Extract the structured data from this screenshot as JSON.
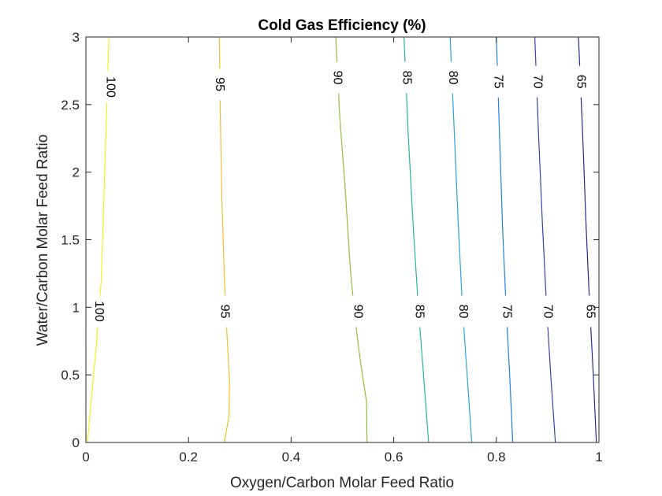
{
  "chart_data": {
    "type": "contour",
    "title": "Cold Gas Efficiency (%)",
    "xlabel": "Oxygen/Carbon Molar Feed Ratio",
    "ylabel": "Water/Carbon Molar Feed Ratio",
    "xlim": [
      0,
      1
    ],
    "ylim": [
      0,
      3
    ],
    "xticks": [
      "0",
      "0.2",
      "0.4",
      "0.6",
      "0.8",
      "1"
    ],
    "yticks": [
      "0",
      "0.5",
      "1",
      "1.5",
      "2",
      "2.5",
      "3"
    ],
    "grid": false,
    "legend": "none",
    "levels": [
      {
        "level": "100",
        "color": "#f4f01f",
        "points": [
          [
            0.003,
            0
          ],
          [
            0.01,
            0.3
          ],
          [
            0.02,
            0.7
          ],
          [
            0.03,
            1.2
          ],
          [
            0.035,
            1.8
          ],
          [
            0.04,
            2.4
          ],
          [
            0.045,
            3
          ]
        ],
        "label_points": [
          [
            0.025,
            0.97
          ],
          [
            0.048,
            2.63
          ]
        ]
      },
      {
        "level": "95",
        "color": "#f3c02d",
        "points": [
          [
            0.27,
            0
          ],
          [
            0.279,
            0.2
          ],
          [
            0.28,
            0.45
          ],
          [
            0.275,
            0.8
          ],
          [
            0.27,
            1.2
          ],
          [
            0.265,
            1.8
          ],
          [
            0.262,
            2.4
          ],
          [
            0.26,
            3
          ]
        ],
        "label_points": [
          [
            0.27,
            0.97
          ],
          [
            0.26,
            2.65
          ]
        ]
      },
      {
        "level": "90",
        "color": "#99bb3c",
        "points": [
          [
            0.548,
            0
          ],
          [
            0.547,
            0.3
          ],
          [
            0.535,
            0.6
          ],
          [
            0.525,
            0.9
          ],
          [
            0.515,
            1.3
          ],
          [
            0.505,
            1.9
          ],
          [
            0.495,
            2.4
          ],
          [
            0.487,
            3
          ]
        ],
        "label_points": [
          [
            0.53,
            0.97
          ],
          [
            0.49,
            2.7
          ]
        ]
      },
      {
        "level": "85",
        "color": "#24b6a0",
        "points": [
          [
            0.668,
            0
          ],
          [
            0.658,
            0.5
          ],
          [
            0.648,
            1.0
          ],
          [
            0.638,
            1.6
          ],
          [
            0.628,
            2.3
          ],
          [
            0.62,
            3
          ]
        ],
        "label_points": [
          [
            0.65,
            0.97
          ],
          [
            0.625,
            2.7
          ]
        ]
      },
      {
        "level": "80",
        "color": "#2ca5d8",
        "points": [
          [
            0.752,
            0
          ],
          [
            0.743,
            0.5
          ],
          [
            0.734,
            1.0
          ],
          [
            0.726,
            1.6
          ],
          [
            0.718,
            2.3
          ],
          [
            0.71,
            3
          ]
        ],
        "label_points": [
          [
            0.735,
            0.97
          ],
          [
            0.715,
            2.7
          ]
        ]
      },
      {
        "level": "75",
        "color": "#1e7fe8",
        "points": [
          [
            0.832,
            0
          ],
          [
            0.826,
            0.5
          ],
          [
            0.819,
            1.0
          ],
          [
            0.812,
            1.6
          ],
          [
            0.806,
            2.3
          ],
          [
            0.8,
            3
          ]
        ],
        "label_points": [
          [
            0.82,
            0.97
          ],
          [
            0.803,
            2.67
          ]
        ]
      },
      {
        "level": "70",
        "color": "#3344b0",
        "points": [
          [
            0.915,
            0
          ],
          [
            0.906,
            0.5
          ],
          [
            0.898,
            1.0
          ],
          [
            0.89,
            1.6
          ],
          [
            0.882,
            2.3
          ],
          [
            0.875,
            3
          ]
        ],
        "label_points": [
          [
            0.9,
            0.97
          ],
          [
            0.88,
            2.67
          ]
        ]
      },
      {
        "level": "65",
        "color": "#2a2a8a",
        "points": [
          [
            0.995,
            0
          ],
          [
            0.989,
            0.5
          ],
          [
            0.982,
            1.0
          ],
          [
            0.975,
            1.6
          ],
          [
            0.968,
            2.3
          ],
          [
            0.96,
            3
          ]
        ],
        "label_points": [
          [
            0.983,
            0.97
          ],
          [
            0.965,
            2.67
          ]
        ]
      }
    ]
  }
}
